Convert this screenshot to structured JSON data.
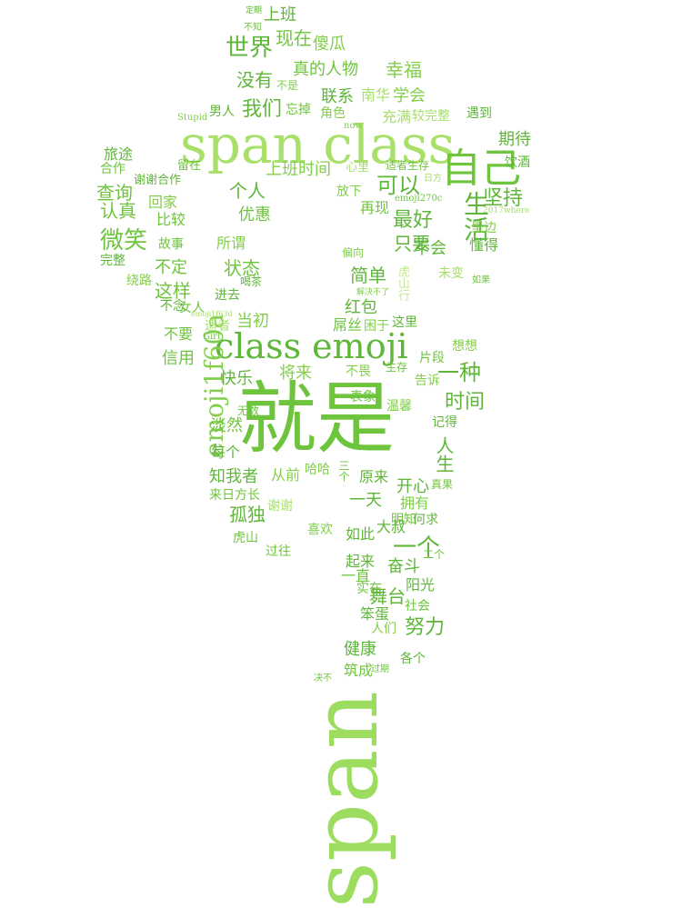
{
  "palette": {
    "dark": "#5fb63a",
    "mid": "#83cf4c",
    "light": "#a6df6a",
    "pale": "#c3ea8c"
  },
  "words": [
    {
      "text": "就是",
      "key": "jiushi"
    },
    {
      "text": "span",
      "key": "span"
    },
    {
      "text": "span class",
      "key": "span-class"
    },
    {
      "text": "class emoji",
      "key": "class-emoji"
    },
    {
      "text": "emoji1f60a",
      "key": "emoji1f60a"
    },
    {
      "text": "自己",
      "key": "ziji"
    },
    {
      "text": "生活",
      "key": "shenghuo"
    },
    {
      "text": "世界",
      "key": "shijie"
    },
    {
      "text": "上班",
      "key": "shangban"
    },
    {
      "text": "现在",
      "key": "xianzai"
    },
    {
      "text": "傻瓜",
      "key": "shagua"
    },
    {
      "text": "没有",
      "key": "meiyou"
    },
    {
      "text": "真的人物",
      "key": "zhenderenwu"
    },
    {
      "text": "幸福",
      "key": "xingfu"
    },
    {
      "text": "联系",
      "key": "lianxi"
    },
    {
      "text": "南华",
      "key": "nanhua"
    },
    {
      "text": "学会",
      "key": "xuehui"
    },
    {
      "text": "我们",
      "key": "women"
    },
    {
      "text": "忘掉",
      "key": "wangdiao"
    },
    {
      "text": "男人",
      "key": "nanren"
    },
    {
      "text": "充满",
      "key": "chongman"
    },
    {
      "text": "较完整",
      "key": "jiaowanzheng"
    },
    {
      "text": "遇到",
      "key": "yudao"
    },
    {
      "text": "期待",
      "key": "qidai"
    },
    {
      "text": "旅途",
      "key": "lvtu"
    },
    {
      "text": "合作",
      "key": "hezuo"
    },
    {
      "text": "上班时间",
      "key": "shangbanshijian"
    },
    {
      "text": "心里",
      "key": "xinli"
    },
    {
      "text": "适者生存",
      "key": "shizheshengcun"
    },
    {
      "text": "饮酒",
      "key": "yinjiu"
    },
    {
      "text": "查询",
      "key": "chaxun"
    },
    {
      "text": "谢谢合作",
      "key": "xiexiehezuo"
    },
    {
      "text": "留在",
      "key": "liuzai"
    },
    {
      "text": "个人",
      "key": "geren"
    },
    {
      "text": "可以",
      "key": "keyi"
    },
    {
      "text": "坚持",
      "key": "jianchi"
    },
    {
      "text": "认真",
      "key": "renzhen"
    },
    {
      "text": "回家",
      "key": "huijia"
    },
    {
      "text": "优惠",
      "key": "youhui"
    },
    {
      "text": "放下",
      "key": "fangxia"
    },
    {
      "text": "再现",
      "key": "zaixian"
    },
    {
      "text": "最好",
      "key": "zuihao"
    },
    {
      "text": "微笑",
      "key": "weixiao"
    },
    {
      "text": "比较",
      "key": "bijiao"
    },
    {
      "text": "所谓",
      "key": "suowei"
    },
    {
      "text": "只要",
      "key": "zhiyao"
    },
    {
      "text": "不会",
      "key": "buhui"
    },
    {
      "text": "懂得",
      "key": "dongde"
    },
    {
      "text": "里边",
      "key": "libian"
    },
    {
      "text": "故事",
      "key": "gushi"
    },
    {
      "text": "完整",
      "key": "wanzheng"
    },
    {
      "text": "不定",
      "key": "buding"
    },
    {
      "text": "状态",
      "key": "zhuangtai"
    },
    {
      "text": "简单",
      "key": "jiandan"
    },
    {
      "text": "未变",
      "key": "weibian"
    },
    {
      "text": "绕路",
      "key": "raolu"
    },
    {
      "text": "这样",
      "key": "zheyang"
    },
    {
      "text": "进去",
      "key": "jinqu"
    },
    {
      "text": "红包",
      "key": "hongbao"
    },
    {
      "text": "女人",
      "key": "nvren"
    },
    {
      "text": "不念",
      "key": "bunian"
    },
    {
      "text": "当初",
      "key": "dangchu"
    },
    {
      "text": "屌丝",
      "key": "diaosi"
    },
    {
      "text": "困于",
      "key": "kunyu"
    },
    {
      "text": "这里",
      "key": "zheli"
    },
    {
      "text": "不要",
      "key": "buyao"
    },
    {
      "text": "适者",
      "key": "shizhe"
    },
    {
      "text": "想想",
      "key": "xiangxiang"
    },
    {
      "text": "片段",
      "key": "pianduan"
    },
    {
      "text": "信用",
      "key": "xinyong"
    },
    {
      "text": "一种",
      "key": "yizhong"
    },
    {
      "text": "快乐",
      "key": "kuaile"
    },
    {
      "text": "将来",
      "key": "jianglai"
    },
    {
      "text": "不畏",
      "key": "buwei"
    },
    {
      "text": "告诉",
      "key": "gaosu"
    },
    {
      "text": "表象",
      "key": "biaoxiang"
    },
    {
      "text": "时间",
      "key": "shijian"
    },
    {
      "text": "温馨",
      "key": "wenxin"
    },
    {
      "text": "淡然",
      "key": "danran"
    },
    {
      "text": "记得",
      "key": "jide"
    },
    {
      "text": "无数",
      "key": "wushu"
    },
    {
      "text": "每个",
      "key": "meige"
    },
    {
      "text": "人生",
      "key": "rensheng"
    },
    {
      "text": "知我者",
      "key": "zhiwozhe"
    },
    {
      "text": "从前",
      "key": "congqian"
    },
    {
      "text": "哈哈",
      "key": "haha"
    },
    {
      "text": "原来",
      "key": "yuanlai"
    },
    {
      "text": "开心",
      "key": "kaixin"
    },
    {
      "text": "来日方长",
      "key": "lairifangchang"
    },
    {
      "text": "谢谢",
      "key": "xiexie"
    },
    {
      "text": "一天",
      "key": "yitian"
    },
    {
      "text": "拥有",
      "key": "yongyou"
    },
    {
      "text": "孤独",
      "key": "gudu"
    },
    {
      "text": "明知",
      "key": "mingzhi"
    },
    {
      "text": "喜欢",
      "key": "xihuan"
    },
    {
      "text": "大叔",
      "key": "dashu"
    },
    {
      "text": "何求",
      "key": "heqiu"
    },
    {
      "text": "虎山",
      "key": "hushan"
    },
    {
      "text": "如此",
      "key": "ruci"
    },
    {
      "text": "过往",
      "key": "guowang"
    },
    {
      "text": "一个",
      "key": "yige"
    },
    {
      "text": "起来",
      "key": "qilai"
    },
    {
      "text": "奋斗",
      "key": "fendou"
    },
    {
      "text": "一直",
      "key": "yizhi"
    },
    {
      "text": "实在",
      "key": "shizai"
    },
    {
      "text": "阳光",
      "key": "yangguang"
    },
    {
      "text": "舞台",
      "key": "wutai"
    },
    {
      "text": "社会",
      "key": "shehui"
    },
    {
      "text": "笨蛋",
      "key": "bendan"
    },
    {
      "text": "努力",
      "key": "nuli"
    },
    {
      "text": "人们",
      "key": "renmen"
    },
    {
      "text": "健康",
      "key": "jiankang"
    },
    {
      "text": "各个",
      "key": "gege"
    },
    {
      "text": "筑成",
      "key": "zhucheng"
    },
    {
      "text": "不知",
      "key": "buzhi"
    },
    {
      "text": "不是",
      "key": "bushi"
    },
    {
      "text": "角色",
      "key": "jiaose"
    },
    {
      "text": "Stupid",
      "key": "stupid"
    },
    {
      "text": "now",
      "key": "now"
    },
    {
      "text": "emoji270c",
      "key": "emoji270c"
    },
    {
      "text": "2017where",
      "key": "where2017"
    },
    {
      "text": "Girl",
      "key": "girl"
    },
    {
      "text": "喝茶",
      "key": "hecha"
    },
    {
      "text": "解决不了",
      "key": "jiejuebuliao"
    },
    {
      "text": "过期",
      "key": "guoqi"
    },
    {
      "text": "决不",
      "key": "juebu"
    },
    {
      "text": "生存",
      "key": "shengcun"
    },
    {
      "text": "如果",
      "key": "ruguo"
    },
    {
      "text": "偏向",
      "key": "pianxiang"
    },
    {
      "text": "日方",
      "key": "rifang"
    },
    {
      "text": "三个",
      "key": "sange"
    },
    {
      "text": "二个",
      "key": "erge"
    },
    {
      "text": "真果",
      "key": "zhenguo"
    },
    {
      "text": "定期",
      "key": "dingqi"
    },
    {
      "text": "emoji1f63d",
      "key": "emoji1f63d"
    },
    {
      "text": "虎山行",
      "key": "hushanxing"
    }
  ]
}
